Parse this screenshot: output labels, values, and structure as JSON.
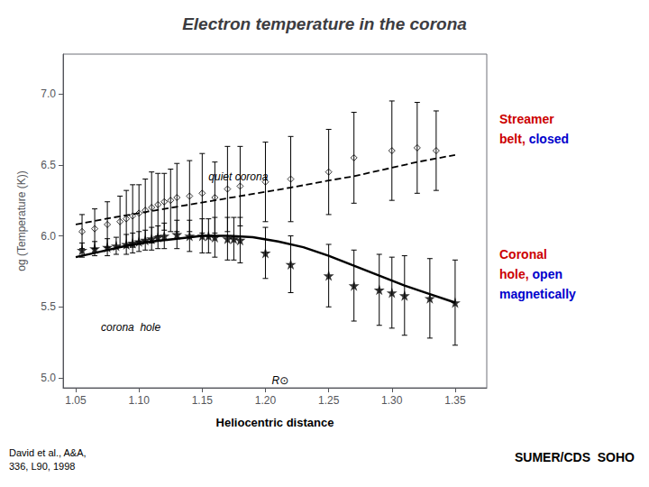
{
  "chart_data": {
    "type": "line",
    "title": "Electron temperature in the corona",
    "ylabel": "og (Temperature (K))",
    "xlabel": "Heliocentric distance",
    "xlim": [
      1.04,
      1.375
    ],
    "ylim": [
      4.93,
      7.28
    ],
    "xticks": [
      1.05,
      {
        "value": 1.1,
        "label": "1.10"
      },
      1.15,
      {
        "value": 1.2,
        "label": "1.20"
      },
      1.25,
      {
        "value": 1.3,
        "label": "1.30"
      },
      1.35
    ],
    "yticks": [
      {
        "value": 5.0,
        "label": "5.0"
      },
      5.5,
      {
        "value": 6.0,
        "label": "6.0"
      },
      6.5,
      {
        "value": 7.0,
        "label": "7.0"
      }
    ],
    "grid": false,
    "series": [
      {
        "type": "line",
        "line_style": "dashed",
        "color": "#000000",
        "x": [
          1.05,
          1.08,
          1.1,
          1.12,
          1.14,
          1.16,
          1.18,
          1.2,
          1.22,
          1.25,
          1.27,
          1.3,
          1.32,
          1.35
        ],
        "values": [
          6.08,
          6.13,
          6.16,
          6.19,
          6.22,
          6.25,
          6.28,
          6.31,
          6.34,
          6.39,
          6.42,
          6.48,
          6.52,
          6.57
        ]
      },
      {
        "type": "line",
        "line_style": "solid",
        "color": "#000000",
        "x": [
          1.05,
          1.07,
          1.09,
          1.11,
          1.13,
          1.15,
          1.17,
          1.19,
          1.21,
          1.23,
          1.25,
          1.27,
          1.29,
          1.31,
          1.33,
          1.35
        ],
        "values": [
          5.85,
          5.89,
          5.93,
          5.96,
          5.98,
          6.0,
          6.0,
          5.99,
          5.96,
          5.92,
          5.86,
          5.79,
          5.72,
          5.65,
          5.59,
          5.53
        ]
      },
      {
        "type": "scatter",
        "marker": "diamond",
        "color": "#000000",
        "x": [
          1.055,
          1.065,
          1.075,
          1.085,
          1.09,
          1.095,
          1.1,
          1.105,
          1.11,
          1.115,
          1.12,
          1.125,
          1.13,
          1.14,
          1.15,
          1.16,
          1.17,
          1.18,
          1.2,
          1.22,
          1.25,
          1.27,
          1.3,
          1.32,
          1.335
        ],
        "values": [
          6.03,
          6.05,
          6.08,
          6.1,
          6.12,
          6.14,
          6.16,
          6.18,
          6.2,
          6.22,
          6.24,
          6.25,
          6.27,
          6.28,
          6.3,
          6.27,
          6.33,
          6.35,
          6.38,
          6.4,
          6.45,
          6.55,
          6.6,
          6.62,
          6.6
        ],
        "yerr": [
          0.12,
          0.14,
          0.16,
          0.18,
          0.2,
          0.22,
          0.2,
          0.22,
          0.25,
          0.22,
          0.2,
          0.22,
          0.24,
          0.25,
          0.28,
          0.25,
          0.3,
          0.28,
          0.28,
          0.3,
          0.3,
          0.32,
          0.35,
          0.32,
          0.28
        ]
      },
      {
        "type": "scatter",
        "marker": "star",
        "color": "#000000",
        "x": [
          1.055,
          1.065,
          1.075,
          1.082,
          1.09,
          1.095,
          1.1,
          1.105,
          1.11,
          1.115,
          1.12,
          1.13,
          1.14,
          1.15,
          1.155,
          1.16,
          1.17,
          1.175,
          1.18,
          1.2,
          1.22,
          1.25,
          1.27,
          1.29,
          1.3,
          1.31,
          1.33,
          1.35
        ],
        "values": [
          5.9,
          5.91,
          5.92,
          5.93,
          5.94,
          5.95,
          5.96,
          5.97,
          5.98,
          5.99,
          6.0,
          6.01,
          6.0,
          6.0,
          6.0,
          5.99,
          5.98,
          5.98,
          5.97,
          5.88,
          5.8,
          5.72,
          5.65,
          5.62,
          5.6,
          5.58,
          5.56,
          5.53
        ],
        "yerr": [
          0.05,
          0.05,
          0.06,
          0.06,
          0.07,
          0.07,
          0.07,
          0.07,
          0.08,
          0.08,
          0.09,
          0.1,
          0.11,
          0.12,
          0.12,
          0.14,
          0.15,
          0.15,
          0.16,
          0.18,
          0.2,
          0.22,
          0.25,
          0.25,
          0.25,
          0.28,
          0.28,
          0.3
        ]
      }
    ],
    "annotations": [
      {
        "text": "quiet corona",
        "x": 1.155,
        "y": 6.38
      },
      {
        "text": "corona  hole",
        "x": 1.07,
        "y": 5.32
      },
      {
        "text": "R⊙",
        "x": 1.205,
        "y": 4.945
      }
    ],
    "notes": [
      [
        [
          {
            "text": "Streamer",
            "color": "#CC0000"
          }
        ],
        [
          {
            "text": "belt,",
            "color": "#CC0000"
          },
          {
            "text": "closed",
            "color": "#0000CC"
          }
        ]
      ],
      [
        [
          {
            "text": "Coronal",
            "color": "#CC0000"
          }
        ],
        [
          {
            "text": "hole,",
            "color": "#CC0000"
          },
          {
            "text": "open",
            "color": "#0000CC"
          }
        ],
        [
          {
            "text": "magnetically",
            "color": "#0000CC"
          }
        ]
      ]
    ],
    "source": "David et al., A&A,\n336, L90, 1998",
    "footer": "SUMER/CDS  SOHO"
  }
}
